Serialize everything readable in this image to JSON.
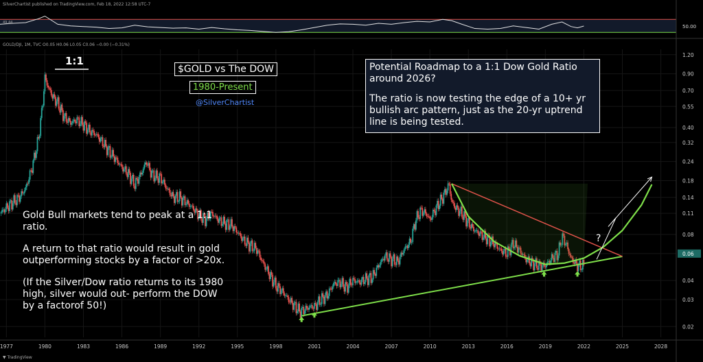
{
  "header": {
    "publisher": "SilverChartist published on TradingView.com, Feb 18, 2022 12:58 UTC-7",
    "symbol_line": "GOLD/DJI, 1M, TVC  O0.05 H0.06 L0.05 C0.06 −0.00 (−0.31%)",
    "osc_value": "49.44"
  },
  "title": {
    "main": "$GOLD vs The DOW",
    "period": "1980-Present",
    "handle": "@SilverChartist"
  },
  "roadmap": {
    "heading": "Potential Roadmap to a 1:1 Dow Gold Ratio around 2026?",
    "body": "The ratio is now testing the edge of a 10+ yr bullish arc pattern, just as the 20-yr uptrend line is being tested."
  },
  "notes": {
    "p1": "Gold Bull markets tend to peak at a 1:1 ratio.",
    "p2": "A return to that ratio would result in gold outperforming stocks by a factor of >20x.",
    "p3": "(If the Silver/Dow ratio returns to its 1980 high, silver would out- perform the  DOW by a factorof 50!)"
  },
  "annotations": {
    "peak_label": "1:1",
    "question": "?"
  },
  "footer": {
    "brand": "TradingView"
  },
  "colors": {
    "bull": "#26a69a",
    "bear": "#ef5350",
    "arc": "#7fe04a",
    "trendline": "#7fe04a",
    "resistance": "#e0534a",
    "osc": "#e6e6e6",
    "osc_upper": "#e0534a",
    "osc_lower": "#7fe04a",
    "panel": "#121a2a"
  },
  "chart_data": {
    "type": "line",
    "scale": "log",
    "ylim": [
      0.017,
      1.3
    ],
    "xlim": [
      1976.5,
      2029.2
    ],
    "xticks": [
      "1977",
      "1980",
      "1983",
      "1986",
      "1989",
      "1992",
      "1995",
      "1998",
      "2001",
      "2004",
      "2007",
      "2010",
      "2013",
      "2016",
      "2019",
      "2022",
      "2025",
      "2028"
    ],
    "yticks": [
      "1.20",
      "0.90",
      "0.70",
      "0.55",
      "0.40",
      "0.32",
      "0.24",
      "0.18",
      "0.14",
      "0.11",
      "0.08",
      "0.06",
      "0.04",
      "0.03",
      "0.02"
    ],
    "last_value": "0.06",
    "series": [
      {
        "x": [
          1976.5,
          1977.0,
          1977.5,
          1978.0,
          1978.5,
          1979.0,
          1979.5,
          1979.8,
          1980.0,
          1980.3,
          1980.6,
          1981.0,
          1981.5,
          1982.0,
          1982.5,
          1983.0,
          1983.5,
          1984.0,
          1984.5,
          1985.0,
          1985.5,
          1986.0,
          1986.5,
          1987.0,
          1987.5,
          1987.9,
          1988.3,
          1988.7,
          1989.0,
          1989.5,
          1990.0,
          1990.5,
          1991.0,
          1991.5,
          1992.0,
          1992.5,
          1993.0,
          1993.5,
          1994.0,
          1994.5,
          1995.0,
          1995.5,
          1996.0,
          1996.5,
          1997.0,
          1997.5,
          1998.0,
          1998.5,
          1999.0,
          1999.5,
          1999.9,
          2000.3,
          2000.7,
          2001.0,
          2001.5,
          2002.0,
          2002.5,
          2003.0,
          2003.5,
          2004.0,
          2004.5,
          2005.0,
          2005.5,
          2006.0,
          2006.5,
          2007.0,
          2007.5,
          2008.0,
          2008.5,
          2008.9,
          2009.3,
          2009.7,
          2010.0,
          2010.5,
          2011.0,
          2011.5,
          2011.7,
          2012.0,
          2012.5,
          2013.0,
          2013.5,
          2014.0,
          2014.5,
          2015.0,
          2015.5,
          2016.0,
          2016.5,
          2017.0,
          2017.5,
          2018.0,
          2018.5,
          2019.0,
          2019.5,
          2020.0,
          2020.3,
          2020.6,
          2021.0,
          2021.5,
          2022.0
        ],
        "values": [
          0.11,
          0.12,
          0.13,
          0.14,
          0.16,
          0.22,
          0.34,
          0.55,
          0.85,
          0.72,
          0.64,
          0.58,
          0.47,
          0.43,
          0.45,
          0.42,
          0.38,
          0.36,
          0.32,
          0.28,
          0.25,
          0.22,
          0.2,
          0.17,
          0.2,
          0.24,
          0.2,
          0.19,
          0.19,
          0.16,
          0.14,
          0.14,
          0.13,
          0.12,
          0.107,
          0.1,
          0.11,
          0.1,
          0.095,
          0.093,
          0.083,
          0.073,
          0.068,
          0.064,
          0.052,
          0.044,
          0.037,
          0.034,
          0.03,
          0.027,
          0.025,
          0.026,
          0.027,
          0.027,
          0.03,
          0.032,
          0.038,
          0.039,
          0.036,
          0.04,
          0.039,
          0.041,
          0.042,
          0.05,
          0.058,
          0.055,
          0.053,
          0.064,
          0.072,
          0.1,
          0.115,
          0.11,
          0.1,
          0.12,
          0.14,
          0.17,
          0.13,
          0.12,
          0.11,
          0.095,
          0.085,
          0.08,
          0.075,
          0.07,
          0.063,
          0.06,
          0.07,
          0.063,
          0.055,
          0.052,
          0.05,
          0.05,
          0.056,
          0.06,
          0.078,
          0.07,
          0.056,
          0.05,
          0.05
        ]
      }
    ],
    "oscillator": {
      "upper": 70,
      "lower": 30,
      "ylim": [
        20,
        100
      ],
      "ytick": "50.00",
      "ytick_value": 50,
      "x": [
        1976.5,
        1977.5,
        1978.5,
        1979.5,
        1980.0,
        1981.0,
        1982.0,
        1983.0,
        1984.0,
        1985.0,
        1986.0,
        1987.0,
        1988.0,
        1989.0,
        1990.0,
        1991.0,
        1992.0,
        1993.0,
        1994.0,
        1995.0,
        1996.0,
        1997.0,
        1998.0,
        1999.0,
        2000.0,
        2001.0,
        2002.0,
        2003.0,
        2004.0,
        2005.0,
        2006.0,
        2007.0,
        2008.0,
        2009.0,
        2010.0,
        2011.0,
        2011.7,
        2012.5,
        2013.5,
        2014.5,
        2015.5,
        2016.5,
        2017.5,
        2018.5,
        2019.5,
        2020.3,
        2021.0,
        2021.5,
        2022.0
      ],
      "values": [
        55,
        58,
        60,
        72,
        80,
        55,
        50,
        48,
        46,
        42,
        44,
        52,
        47,
        45,
        43,
        44,
        40,
        45,
        41,
        38,
        36,
        33,
        30,
        32,
        38,
        45,
        52,
        56,
        55,
        52,
        58,
        55,
        60,
        64,
        62,
        70,
        66,
        55,
        42,
        40,
        42,
        50,
        45,
        40,
        55,
        62,
        48,
        44,
        49.4
      ]
    },
    "trendline": {
      "x": [
        2000.0,
        2025.0
      ],
      "values": [
        0.0235,
        0.0575
      ]
    },
    "resistance": {
      "x": [
        2011.7,
        2025.0
      ],
      "values": [
        0.172,
        0.0575
      ]
    },
    "arc": {
      "x": [
        2011.7,
        2013,
        2015,
        2017,
        2019,
        2020.5,
        2022,
        2023.5,
        2025,
        2026.5,
        2027.3
      ],
      "values": [
        0.172,
        0.105,
        0.072,
        0.058,
        0.051,
        0.052,
        0.056,
        0.066,
        0.085,
        0.125,
        0.17
      ]
    },
    "green_arrows": {
      "x": [
        2000.0,
        2001.0,
        2018.9,
        2021.5
      ]
    },
    "roadmap_arrow": {
      "x": [
        2023.0,
        2024.5,
        2023.9,
        2027.3
      ],
      "values": [
        0.055,
        0.103,
        0.09,
        0.19
      ]
    }
  }
}
